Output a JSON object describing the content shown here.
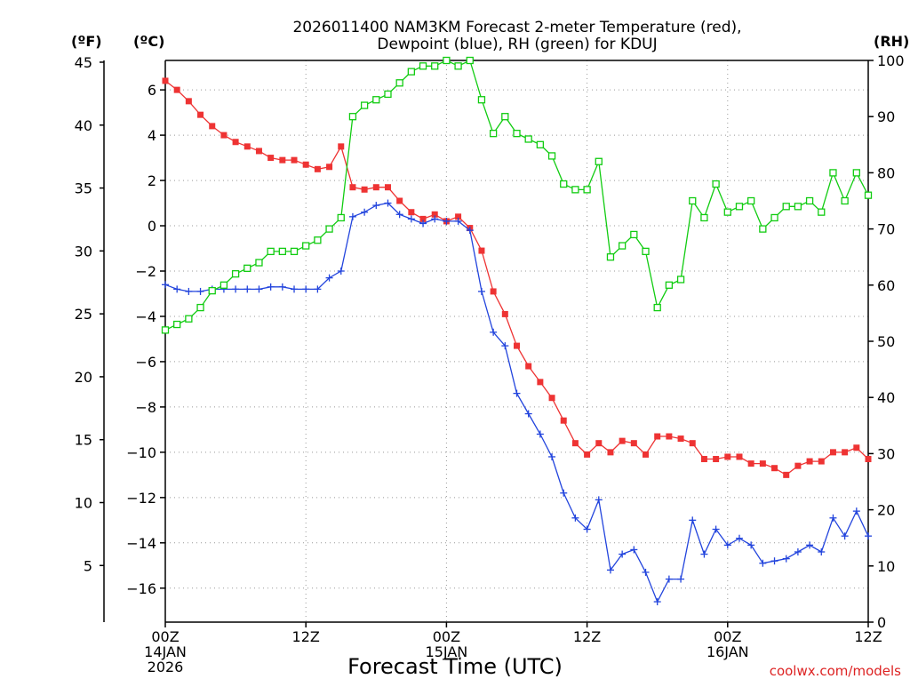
{
  "chart_data": {
    "type": "line",
    "title_line1": "2026011400 NAM3KM Forecast 2-meter Temperature (red),",
    "title_line2": "Dewpoint (blue), RH (green) for KDUJ",
    "xlabel": "Forecast Time (UTC)",
    "credit": "coolwx.com/models",
    "units": {
      "fahrenheit": "(ºF)",
      "celsius": "(ºC)",
      "rh": "(RH)"
    },
    "x_ticks": [
      {
        "hour": 0,
        "line1": "00Z",
        "line2": "14JAN",
        "line3": "2026"
      },
      {
        "hour": 12,
        "line1": "12Z",
        "line2": "",
        "line3": ""
      },
      {
        "hour": 24,
        "line1": "00Z",
        "line2": "15JAN",
        "line3": ""
      },
      {
        "hour": 36,
        "line1": "12Z",
        "line2": "",
        "line3": ""
      },
      {
        "hour": 48,
        "line1": "00Z",
        "line2": "16JAN",
        "line3": ""
      },
      {
        "hour": 60,
        "line1": "12Z",
        "line2": "",
        "line3": ""
      }
    ],
    "xlim": [
      0,
      60
    ],
    "ylim_celsius": [
      -17.5,
      7.3
    ],
    "ylim_rh": [
      0,
      100
    ],
    "celsius_ticks": [
      "6",
      "4",
      "2",
      "0",
      "−2",
      "−4",
      "−6",
      "−8",
      "−10",
      "−12",
      "−14",
      "−16"
    ],
    "fahrenheit_ticks": [
      "45",
      "40",
      "35",
      "30",
      "25",
      "20",
      "15",
      "10",
      "5"
    ],
    "rh_ticks": [
      "100",
      "90",
      "80",
      "70",
      "60",
      "50",
      "40",
      "30",
      "20",
      "10",
      "0"
    ],
    "colors": {
      "temperature": "#ee3333",
      "dewpoint": "#2244dd",
      "rh": "#11cc11",
      "grid": "#999999"
    },
    "series": [
      {
        "name": "Temperature (°C)",
        "axis": "celsius",
        "marker": "filled-square",
        "values": [
          6.4,
          6.0,
          5.5,
          4.9,
          4.4,
          4.0,
          3.7,
          3.5,
          3.3,
          3.0,
          2.9,
          2.9,
          2.7,
          2.5,
          2.6,
          3.5,
          1.7,
          1.6,
          1.7,
          1.7,
          1.1,
          0.6,
          0.3,
          0.5,
          0.2,
          0.4,
          -0.1,
          -1.1,
          -2.9,
          -3.9,
          -5.3,
          -6.2,
          -6.9,
          -7.6,
          -8.6,
          -9.6,
          -10.1,
          -9.6,
          -10.0,
          -9.5,
          -9.6,
          -10.1,
          -9.3,
          -9.3,
          -9.4,
          -9.6,
          -10.3,
          -10.3,
          -10.2,
          -10.2,
          -10.5,
          -10.5,
          -10.7,
          -11.0,
          -10.6,
          -10.4,
          -10.4,
          -10.0,
          -10.0,
          -9.8,
          -10.3
        ]
      },
      {
        "name": "Dewpoint (°C)",
        "axis": "celsius",
        "marker": "plus",
        "values": [
          -2.6,
          -2.8,
          -2.9,
          -2.9,
          -2.8,
          -2.8,
          -2.8,
          -2.8,
          -2.8,
          -2.7,
          -2.7,
          -2.8,
          -2.8,
          -2.8,
          -2.3,
          -2.0,
          0.4,
          0.6,
          0.9,
          1.0,
          0.5,
          0.3,
          0.1,
          0.3,
          0.2,
          0.2,
          -0.2,
          -2.9,
          -4.7,
          -5.3,
          -7.4,
          -8.3,
          -9.2,
          -10.2,
          -11.8,
          -12.9,
          -13.4,
          -12.1,
          -15.2,
          -14.5,
          -14.3,
          -15.3,
          -16.6,
          -15.6,
          -15.6,
          -13.0,
          -14.5,
          -13.4,
          -14.1,
          -13.8,
          -14.1,
          -14.9,
          -14.8,
          -14.7,
          -14.4,
          -14.1,
          -14.4,
          -12.9,
          -13.7,
          -12.6,
          -13.7
        ]
      },
      {
        "name": "RH (%)",
        "axis": "rh",
        "marker": "open-square",
        "values": [
          52,
          53,
          54,
          56,
          59,
          60,
          62,
          63,
          64,
          66,
          66,
          66,
          67,
          68,
          70,
          72,
          90,
          92,
          93,
          94,
          96,
          98,
          99,
          99,
          100,
          99,
          100,
          93,
          87,
          90,
          87,
          86,
          85,
          83,
          78,
          77,
          77,
          82,
          65,
          67,
          69,
          66,
          56,
          60,
          61,
          75,
          72,
          78,
          73,
          74,
          75,
          70,
          72,
          74,
          74,
          75,
          73,
          80,
          75,
          80,
          76
        ]
      }
    ]
  }
}
